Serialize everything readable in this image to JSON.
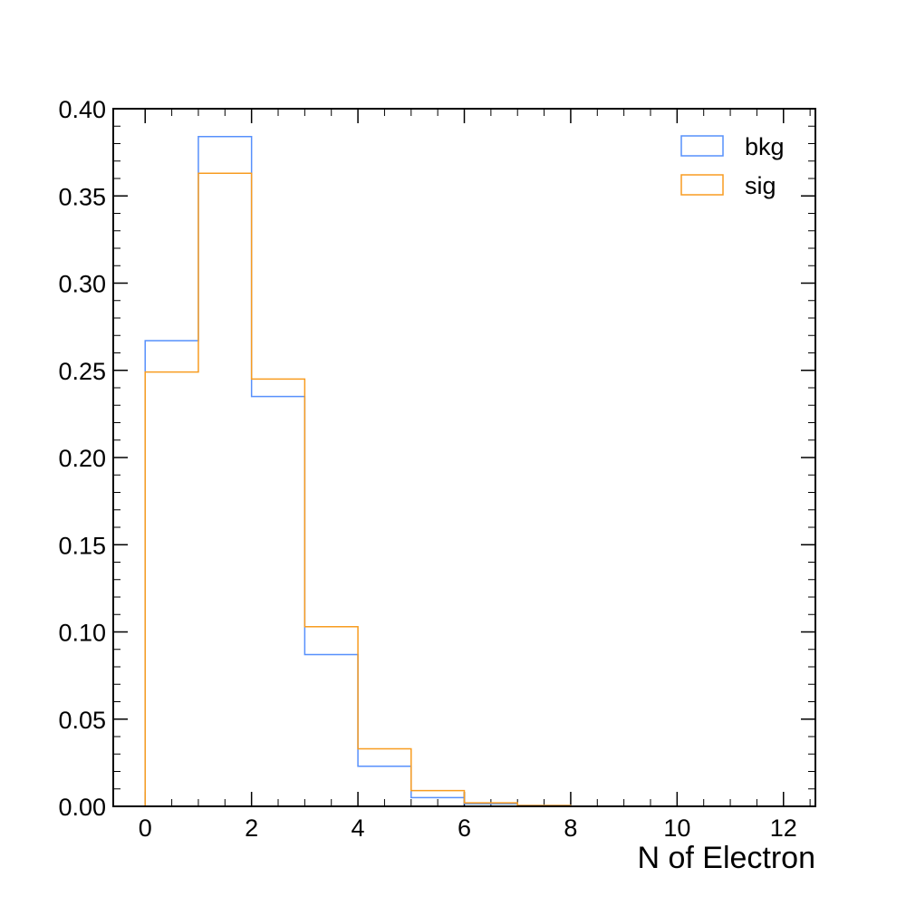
{
  "chart_data": {
    "type": "step-histogram",
    "xlabel": "N of Electron",
    "ylabel": "",
    "xlim": [
      -0.6,
      12.6
    ],
    "ylim": [
      0,
      0.4
    ],
    "x_ticks": [
      0,
      2,
      4,
      6,
      8,
      10,
      12
    ],
    "x_tick_labels": [
      "0",
      "2",
      "4",
      "6",
      "8",
      "10",
      "12"
    ],
    "y_ticks": [
      0,
      0.05,
      0.1,
      0.15,
      0.2,
      0.25,
      0.3,
      0.35,
      0.4
    ],
    "y_tick_labels": [
      "0.00",
      "0.05",
      "0.10",
      "0.15",
      "0.20",
      "0.25",
      "0.30",
      "0.35",
      "0.40"
    ],
    "bin_edges": [
      0,
      1,
      2,
      3,
      4,
      5,
      6,
      7,
      8,
      9,
      10,
      11,
      12
    ],
    "legend_position": "top-right",
    "grid": false,
    "series": [
      {
        "name": "bkg",
        "color": "#5790fc",
        "values": [
          0.267,
          0.384,
          0.235,
          0.087,
          0.023,
          0.005,
          0.0015,
          0.0005,
          0.0001,
          0,
          0,
          0
        ]
      },
      {
        "name": "sig",
        "color": "#f89c20",
        "values": [
          0.249,
          0.363,
          0.245,
          0.103,
          0.033,
          0.009,
          0.002,
          0.0005,
          0.0001,
          0,
          0,
          0
        ]
      }
    ]
  }
}
